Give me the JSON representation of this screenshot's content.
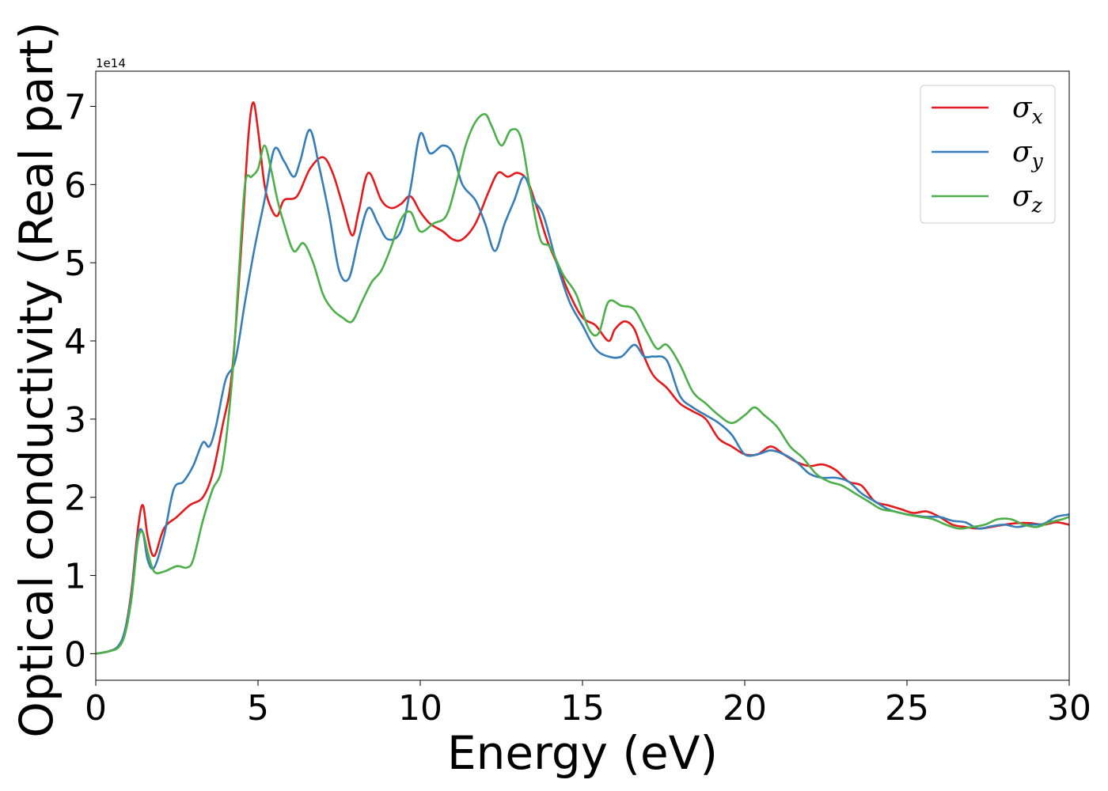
{
  "chart_data": {
    "type": "line",
    "title": "",
    "xlabel": "Energy (eV)",
    "ylabel": "Optical conductivity (Real part)",
    "y_offset_text": "1e14",
    "y_scale_factor": 100000000000000.0,
    "xlim": [
      0,
      30
    ],
    "ylim": [
      -0.34,
      7.45
    ],
    "xticks": [
      0,
      5,
      10,
      15,
      20,
      25,
      30
    ],
    "xtick_labels": [
      "0",
      "5",
      "10",
      "15",
      "20",
      "25",
      "30"
    ],
    "yticks": [
      0,
      1,
      2,
      3,
      4,
      5,
      6,
      7
    ],
    "ytick_labels": [
      "0",
      "1",
      "2",
      "3",
      "4",
      "5",
      "6",
      "7"
    ],
    "grid": false,
    "legend_position": "top-right",
    "series": [
      {
        "name": "σx",
        "legend_symbol": "σ",
        "legend_sub": "x",
        "color": "#e41a1c",
        "x": [
          0,
          0.4,
          0.7,
          0.9,
          1.1,
          1.3,
          1.45,
          1.6,
          1.8,
          2.1,
          2.5,
          2.9,
          3.3,
          3.6,
          3.9,
          4.2,
          4.5,
          4.7,
          4.85,
          5.0,
          5.2,
          5.4,
          5.6,
          5.8,
          6.2,
          6.6,
          7.0,
          7.3,
          7.6,
          7.9,
          8.1,
          8.4,
          8.8,
          9.1,
          9.4,
          9.7,
          10.0,
          10.3,
          10.7,
          11.0,
          11.3,
          11.7,
          12.1,
          12.4,
          12.7,
          13.0,
          13.3,
          13.6,
          13.9,
          14.2,
          14.6,
          15.0,
          15.4,
          15.8,
          16.0,
          16.3,
          16.6,
          16.9,
          17.2,
          17.6,
          18.0,
          18.4,
          18.8,
          19.2,
          19.6,
          20.0,
          20.4,
          20.8,
          21.2,
          21.6,
          22.0,
          22.4,
          22.8,
          23.2,
          23.6,
          24.0,
          24.4,
          24.8,
          25.2,
          25.6,
          26.0,
          26.4,
          26.8,
          27.2,
          27.6,
          28.0,
          28.4,
          28.8,
          29.2,
          29.6,
          30.0
        ],
        "values": [
          0.0,
          0.03,
          0.1,
          0.3,
          0.8,
          1.6,
          1.9,
          1.5,
          1.25,
          1.6,
          1.75,
          1.9,
          2.0,
          2.3,
          2.9,
          3.6,
          5.3,
          6.6,
          7.05,
          6.7,
          6.0,
          5.7,
          5.6,
          5.8,
          5.85,
          6.2,
          6.35,
          6.15,
          5.75,
          5.35,
          5.65,
          6.15,
          5.8,
          5.7,
          5.75,
          5.85,
          5.65,
          5.5,
          5.4,
          5.3,
          5.3,
          5.5,
          5.9,
          6.15,
          6.1,
          6.15,
          6.05,
          5.7,
          5.3,
          5.0,
          4.6,
          4.3,
          4.2,
          4.0,
          4.15,
          4.25,
          4.15,
          3.8,
          3.55,
          3.4,
          3.2,
          3.1,
          3.0,
          2.75,
          2.65,
          2.55,
          2.55,
          2.65,
          2.55,
          2.45,
          2.4,
          2.42,
          2.35,
          2.2,
          2.15,
          1.95,
          1.9,
          1.85,
          1.8,
          1.82,
          1.75,
          1.65,
          1.62,
          1.6,
          1.62,
          1.65,
          1.67,
          1.67,
          1.65,
          1.68,
          1.65
        ]
      },
      {
        "name": "σy",
        "legend_symbol": "σ",
        "legend_sub": "y",
        "color": "#377eb8",
        "x": [
          0,
          0.4,
          0.7,
          0.9,
          1.1,
          1.3,
          1.45,
          1.6,
          1.8,
          2.1,
          2.4,
          2.7,
          3.0,
          3.3,
          3.5,
          3.7,
          4.0,
          4.3,
          4.6,
          4.9,
          5.2,
          5.5,
          5.8,
          6.1,
          6.3,
          6.6,
          6.9,
          7.2,
          7.5,
          7.8,
          8.1,
          8.4,
          8.7,
          9.0,
          9.4,
          9.7,
          10.0,
          10.3,
          10.7,
          11.0,
          11.3,
          11.7,
          12.0,
          12.3,
          12.6,
          12.9,
          13.2,
          13.5,
          13.8,
          14.2,
          14.6,
          15.0,
          15.4,
          15.8,
          16.2,
          16.6,
          16.9,
          17.2,
          17.6,
          18.0,
          18.4,
          18.8,
          19.2,
          19.6,
          20.0,
          20.4,
          20.8,
          21.2,
          21.6,
          22.0,
          22.4,
          22.8,
          23.2,
          23.6,
          24.0,
          24.4,
          24.8,
          25.2,
          25.6,
          26.0,
          26.4,
          26.8,
          27.2,
          27.6,
          28.0,
          28.4,
          28.8,
          29.2,
          29.6,
          30.0
        ],
        "values": [
          0.0,
          0.03,
          0.1,
          0.3,
          0.75,
          1.5,
          1.55,
          1.2,
          1.1,
          1.5,
          2.1,
          2.2,
          2.4,
          2.7,
          2.65,
          2.9,
          3.5,
          3.75,
          4.5,
          5.2,
          5.8,
          6.45,
          6.3,
          6.1,
          6.3,
          6.7,
          6.2,
          5.6,
          4.9,
          4.8,
          5.3,
          5.7,
          5.5,
          5.3,
          5.4,
          5.95,
          6.65,
          6.4,
          6.5,
          6.4,
          6.0,
          5.8,
          5.5,
          5.15,
          5.5,
          5.8,
          6.1,
          5.8,
          5.6,
          5.0,
          4.5,
          4.2,
          3.9,
          3.8,
          3.8,
          3.95,
          3.8,
          3.8,
          3.75,
          3.3,
          3.15,
          3.05,
          2.95,
          2.8,
          2.55,
          2.55,
          2.6,
          2.55,
          2.45,
          2.3,
          2.25,
          2.25,
          2.2,
          2.05,
          1.95,
          1.85,
          1.8,
          1.77,
          1.75,
          1.75,
          1.7,
          1.68,
          1.6,
          1.63,
          1.65,
          1.62,
          1.65,
          1.66,
          1.75,
          1.78
        ]
      },
      {
        "name": "σz",
        "legend_symbol": "σ",
        "legend_sub": "z",
        "color": "#4daf4a",
        "x": [
          0,
          0.4,
          0.7,
          0.9,
          1.1,
          1.3,
          1.45,
          1.6,
          1.8,
          2.1,
          2.5,
          2.8,
          3.0,
          3.3,
          3.6,
          3.9,
          4.2,
          4.4,
          4.6,
          4.8,
          5.0,
          5.2,
          5.4,
          5.6,
          5.8,
          6.1,
          6.4,
          6.7,
          7.0,
          7.3,
          7.6,
          7.9,
          8.2,
          8.5,
          8.8,
          9.1,
          9.4,
          9.7,
          10.0,
          10.4,
          10.8,
          11.1,
          11.4,
          11.7,
          12.0,
          12.2,
          12.5,
          12.8,
          13.1,
          13.4,
          13.7,
          14.0,
          14.4,
          14.8,
          15.2,
          15.5,
          15.8,
          16.2,
          16.6,
          17.0,
          17.3,
          17.6,
          18.0,
          18.4,
          18.8,
          19.2,
          19.6,
          20.0,
          20.3,
          20.6,
          21.0,
          21.4,
          21.8,
          22.2,
          22.6,
          23.0,
          23.4,
          23.8,
          24.2,
          24.6,
          25.0,
          25.4,
          25.8,
          26.2,
          26.6,
          27.0,
          27.4,
          27.8,
          28.2,
          28.6,
          29.0,
          29.4,
          29.8,
          30.0
        ],
        "values": [
          0.0,
          0.03,
          0.08,
          0.25,
          0.7,
          1.45,
          1.55,
          1.3,
          1.05,
          1.05,
          1.12,
          1.1,
          1.2,
          1.7,
          2.1,
          2.4,
          3.5,
          4.8,
          6.0,
          6.1,
          6.2,
          6.5,
          6.2,
          5.8,
          5.5,
          5.15,
          5.25,
          5.0,
          4.6,
          4.4,
          4.3,
          4.25,
          4.5,
          4.75,
          4.9,
          5.2,
          5.55,
          5.65,
          5.4,
          5.5,
          5.6,
          6.0,
          6.5,
          6.8,
          6.9,
          6.75,
          6.5,
          6.7,
          6.6,
          5.9,
          5.3,
          5.2,
          4.85,
          4.6,
          4.15,
          4.1,
          4.5,
          4.45,
          4.4,
          4.1,
          3.9,
          3.95,
          3.7,
          3.35,
          3.2,
          3.05,
          2.95,
          3.05,
          3.15,
          3.05,
          2.9,
          2.65,
          2.5,
          2.3,
          2.2,
          2.15,
          2.05,
          1.95,
          1.85,
          1.82,
          1.78,
          1.75,
          1.72,
          1.65,
          1.6,
          1.62,
          1.65,
          1.72,
          1.72,
          1.65,
          1.62,
          1.68,
          1.72,
          1.75
        ]
      }
    ]
  }
}
